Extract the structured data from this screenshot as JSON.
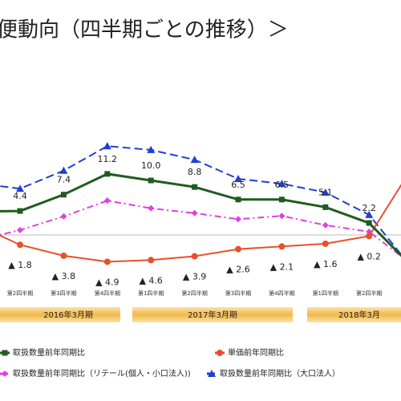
{
  "chart_data": {
    "type": "line",
    "title": "便動向（四半期ごとの推移）＞",
    "categories": [
      null,
      "第2四半期",
      "第3四半期",
      "第4四半期",
      "第1四半期",
      "第2四半期",
      "第3四半期",
      "第4四半期",
      "第1四半期",
      "第2四半期",
      null
    ],
    "periods": [
      "2016年3月期",
      "2017年3月期",
      "2018年3月"
    ],
    "ylim": [
      -10,
      20
    ],
    "series": [
      {
        "name": "取扱数量前年同期比",
        "color": "#1f5c1f",
        "style": "solid",
        "marker": "square",
        "values": [
          4.3,
          4.4,
          7.4,
          11.2,
          10.0,
          8.8,
          6.5,
          6.5,
          5.1,
          2.2,
          -5.9
        ],
        "value_labels": [
          null,
          "4.4",
          "7.4",
          "11.2",
          "10.0",
          "8.8",
          "6.5",
          "6.5",
          "5.1",
          "2.2",
          null
        ]
      },
      {
        "name": "単価前年同期比",
        "color": "#e8502a",
        "style": "solid",
        "marker": "circle",
        "values": [
          1.9,
          -1.8,
          -3.8,
          -4.9,
          -4.6,
          -3.9,
          -2.6,
          -2.1,
          -1.6,
          -0.2,
          12.5
        ],
        "value_labels": [
          null,
          "▲ 1.8",
          "▲ 3.8",
          "▲ 4.9",
          "▲ 4.6",
          "▲ 3.9",
          "▲ 2.6",
          "▲ 2.1",
          "▲ 1.6",
          "▲ 0.2",
          null
        ]
      },
      {
        "name": "取扱数量前年同期比（リテール(個人・小口法人))",
        "color": "#e040e0",
        "style": "dashdot",
        "marker": "diamond",
        "values": [
          -1.0,
          0.9,
          3.4,
          6.3,
          4.9,
          4.0,
          2.9,
          3.5,
          1.8,
          0.6,
          -5.5
        ]
      },
      {
        "name": "取扱数量前年同期比（大口法人）",
        "color": "#2040d0",
        "style": "dashed",
        "marker": "triangle",
        "values": [
          9.5,
          8.5,
          11.8,
          16.3,
          15.6,
          13.8,
          10.3,
          9.4,
          7.8,
          3.7,
          -6.2
        ]
      }
    ]
  }
}
